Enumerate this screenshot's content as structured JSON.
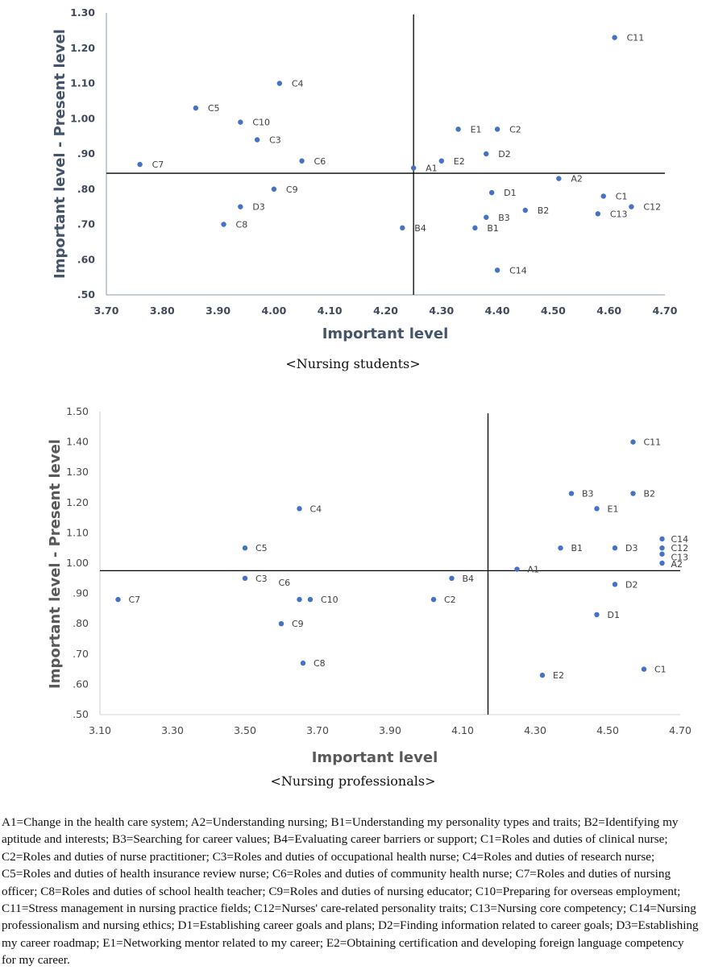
{
  "chart_data": [
    {
      "type": "scatter",
      "title": "",
      "caption": "<Nursing students>",
      "xlabel": "Important level",
      "ylabel": "Important level - Present level",
      "xlim": [
        3.7,
        4.7
      ],
      "ylim": [
        0.5,
        1.3
      ],
      "xticks": [
        "3.70",
        "3.80",
        "3.90",
        "4.00",
        "4.10",
        "4.20",
        "4.30",
        "4.40",
        "4.50",
        "4.60",
        "4.70"
      ],
      "yticks": [
        ".50",
        ".60",
        ".70",
        ".80",
        ".90",
        "1.00",
        "1.10",
        "1.20",
        "1.30"
      ],
      "xtick_values": [
        3.7,
        3.8,
        3.9,
        4.0,
        4.1,
        4.2,
        4.3,
        4.4,
        4.5,
        4.6,
        4.7
      ],
      "ytick_values": [
        0.5,
        0.6,
        0.7,
        0.8,
        0.9,
        1.0,
        1.1,
        1.2,
        1.3
      ],
      "grid": false,
      "mean_lines": {
        "x": 4.25,
        "y": 0.845
      },
      "marker_color": "#4472c4",
      "points": [
        {
          "label": "C11",
          "x": 4.61,
          "y": 1.23
        },
        {
          "label": "C4",
          "x": 4.01,
          "y": 1.1
        },
        {
          "label": "C5",
          "x": 3.86,
          "y": 1.03
        },
        {
          "label": "C10",
          "x": 3.94,
          "y": 0.99
        },
        {
          "label": "C3",
          "x": 3.97,
          "y": 0.94
        },
        {
          "label": "C6",
          "x": 4.05,
          "y": 0.88
        },
        {
          "label": "C7",
          "x": 3.76,
          "y": 0.87
        },
        {
          "label": "E1",
          "x": 4.33,
          "y": 0.97
        },
        {
          "label": "C2",
          "x": 4.4,
          "y": 0.97
        },
        {
          "label": "D2",
          "x": 4.38,
          "y": 0.9
        },
        {
          "label": "E2",
          "x": 4.3,
          "y": 0.88
        },
        {
          "label": "A1",
          "x": 4.25,
          "y": 0.86
        },
        {
          "label": "A2",
          "x": 4.51,
          "y": 0.83
        },
        {
          "label": "D1",
          "x": 4.39,
          "y": 0.79
        },
        {
          "label": "C1",
          "x": 4.59,
          "y": 0.78
        },
        {
          "label": "C12",
          "x": 4.64,
          "y": 0.75
        },
        {
          "label": "C13",
          "x": 4.58,
          "y": 0.73
        },
        {
          "label": "B2",
          "x": 4.45,
          "y": 0.74
        },
        {
          "label": "B3",
          "x": 4.38,
          "y": 0.72
        },
        {
          "label": "B1",
          "x": 4.36,
          "y": 0.69
        },
        {
          "label": "B4",
          "x": 4.23,
          "y": 0.69
        },
        {
          "label": "C9",
          "x": 4.0,
          "y": 0.8
        },
        {
          "label": "D3",
          "x": 3.94,
          "y": 0.75
        },
        {
          "label": "C8",
          "x": 3.91,
          "y": 0.7
        },
        {
          "label": "C14",
          "x": 4.4,
          "y": 0.57
        }
      ]
    },
    {
      "type": "scatter",
      "title": "",
      "caption": "<Nursing professionals>",
      "xlabel": "Important level",
      "ylabel": "Important level - Present level",
      "xlim": [
        3.1,
        4.7
      ],
      "ylim": [
        0.5,
        1.5
      ],
      "xticks": [
        "3.10",
        "3.30",
        "3.50",
        "3.70",
        "3.90",
        "4.10",
        "4.30",
        "4.50",
        "4.70"
      ],
      "yticks": [
        ".50",
        ".60",
        ".70",
        ".80",
        ".90",
        "1.00",
        "1.10",
        "1.20",
        "1.30",
        "1.40",
        "1.50"
      ],
      "xtick_values": [
        3.1,
        3.3,
        3.5,
        3.7,
        3.9,
        4.1,
        4.3,
        4.5,
        4.7
      ],
      "ytick_values": [
        0.5,
        0.6,
        0.7,
        0.8,
        0.9,
        1.0,
        1.1,
        1.2,
        1.3,
        1.4,
        1.5
      ],
      "grid": false,
      "mean_lines": {
        "x": 4.17,
        "y": 0.975
      },
      "marker_color": "#4472c4",
      "points": [
        {
          "label": "C11",
          "x": 4.57,
          "y": 1.4
        },
        {
          "label": "B3",
          "x": 4.4,
          "y": 1.23
        },
        {
          "label": "B2",
          "x": 4.57,
          "y": 1.23
        },
        {
          "label": "E1",
          "x": 4.47,
          "y": 1.18
        },
        {
          "label": "C4",
          "x": 3.65,
          "y": 1.18
        },
        {
          "label": "C14",
          "x": 4.65,
          "y": 1.08
        },
        {
          "label": "C12",
          "x": 4.65,
          "y": 1.05
        },
        {
          "label": "C13",
          "x": 4.65,
          "y": 1.03
        },
        {
          "label": "A2",
          "x": 4.65,
          "y": 1.0
        },
        {
          "label": "B1",
          "x": 4.37,
          "y": 1.05
        },
        {
          "label": "D3",
          "x": 4.52,
          "y": 1.05
        },
        {
          "label": "C5",
          "x": 3.5,
          "y": 1.05
        },
        {
          "label": "A1",
          "x": 4.25,
          "y": 0.98
        },
        {
          "label": "C3",
          "x": 3.5,
          "y": 0.95
        },
        {
          "label": "B4",
          "x": 4.07,
          "y": 0.95
        },
        {
          "label": "D2",
          "x": 4.52,
          "y": 0.93
        },
        {
          "label": "C7",
          "x": 3.15,
          "y": 0.88
        },
        {
          "label": "C6",
          "x": 3.65,
          "y": 0.88
        },
        {
          "label": "C10",
          "x": 3.68,
          "y": 0.88
        },
        {
          "label": "C2",
          "x": 4.02,
          "y": 0.88
        },
        {
          "label": "C9",
          "x": 3.6,
          "y": 0.8
        },
        {
          "label": "D1",
          "x": 4.47,
          "y": 0.83
        },
        {
          "label": "C8",
          "x": 3.66,
          "y": 0.67
        },
        {
          "label": "C1",
          "x": 4.6,
          "y": 0.65
        },
        {
          "label": "E2",
          "x": 4.32,
          "y": 0.63
        }
      ]
    }
  ],
  "captions": {
    "students": "<Nursing students>",
    "professionals": "<Nursing professionals>"
  },
  "footnote": "A1=Change in the health care system; A2=Understanding nursing; B1=Understanding my personality types and traits; B2=Identifying my aptitude and interests; B3=Searching for career values; B4=Evaluating career barriers or support; C1=Roles and duties of clinical nurse; C2=Roles and duties of nurse practitioner; C3=Roles and duties of occupational health nurse; C4=Roles and duties of research nurse; C5=Roles and duties of health insurance review nurse; C6=Roles and duties of community health nurse; C7=Roles and duties of nursing officer; C8=Roles and duties of school health teacher; C9=Roles and duties of nursing educator; C10=Preparing for overseas employment; C11=Stress management in nursing practice fields; C12=Nurses' care-related personality traits; C13=Nursing core competency; C14=Nursing professionalism and nursing ethics; D1=Establishing career goals and plans; D2=Finding information related to career goals; D3=Establishing my career roadmap; E1=Networking mentor related to my career; E2=Obtaining certification and developing foreign language competency for my career."
}
